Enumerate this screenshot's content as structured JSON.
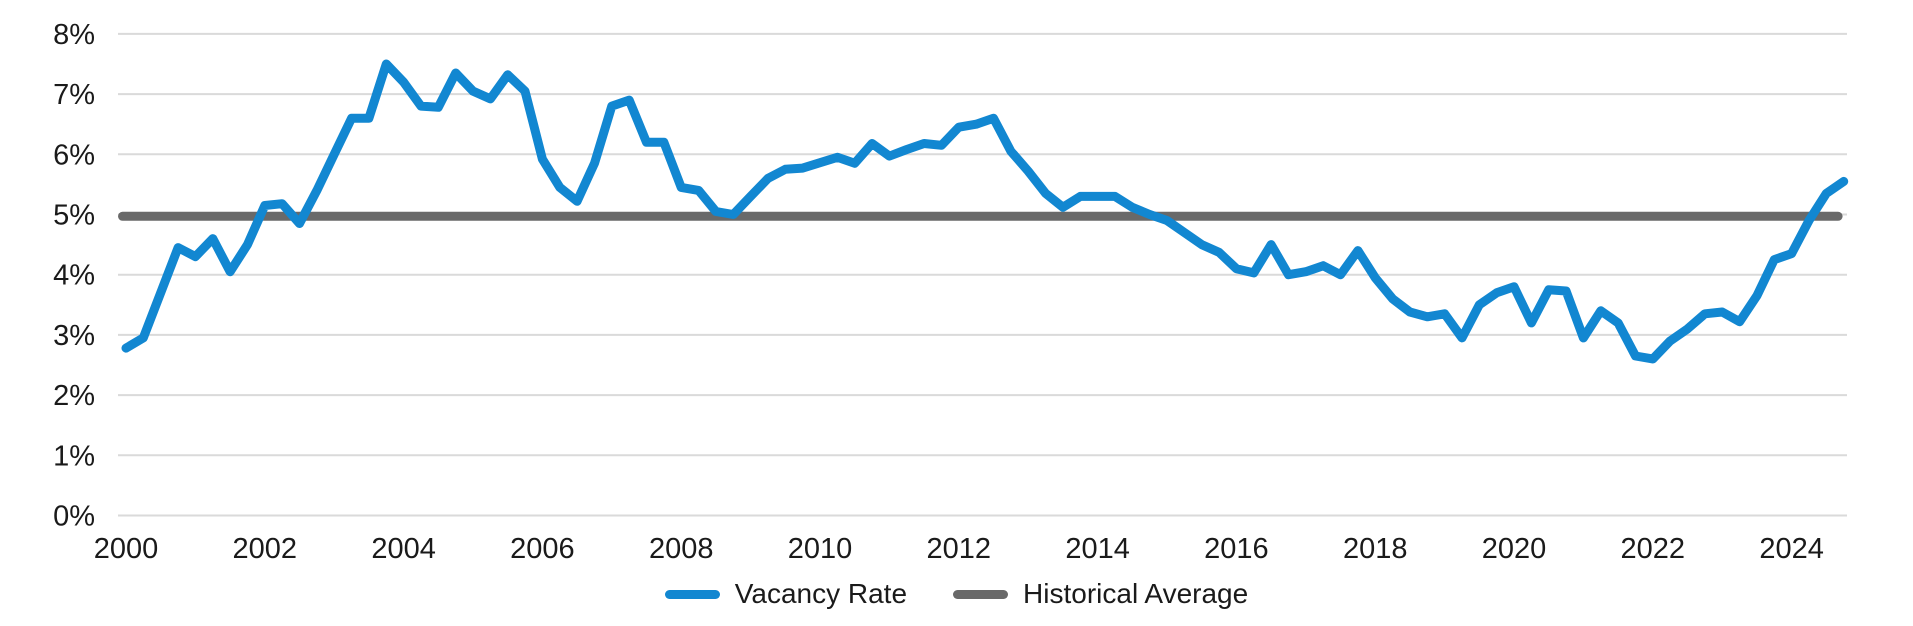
{
  "chart_data": {
    "type": "line",
    "title": "",
    "xlabel": "",
    "ylabel": "",
    "grid": "horizontal",
    "ylim": [
      0,
      8
    ],
    "y_ticks": [
      0,
      1,
      2,
      3,
      4,
      5,
      6,
      7,
      8
    ],
    "y_tick_labels": [
      "0%",
      "1%",
      "2%",
      "3%",
      "4%",
      "5%",
      "6%",
      "7%",
      "8%"
    ],
    "x_tick_years": [
      2000,
      2002,
      2004,
      2006,
      2008,
      2010,
      2012,
      2014,
      2016,
      2018,
      2020,
      2022,
      2024
    ],
    "x_tick_labels": [
      "2000",
      "2002",
      "2004",
      "2006",
      "2008",
      "2010",
      "2012",
      "2014",
      "2016",
      "2018",
      "2020",
      "2022",
      "2024"
    ],
    "legend_position": "bottom-center",
    "series": [
      {
        "name": "Vacancy Rate",
        "color": "#1287d1",
        "x_start": 2000.0,
        "x_step": 0.25,
        "x_end": 2024.75,
        "unit": "%",
        "values": [
          2.78,
          2.95,
          3.7,
          4.45,
          4.3,
          4.6,
          4.05,
          4.5,
          5.15,
          5.18,
          4.85,
          5.4,
          6.0,
          6.6,
          6.6,
          7.5,
          7.2,
          6.8,
          6.78,
          7.35,
          7.05,
          6.92,
          7.32,
          7.05,
          5.92,
          5.45,
          5.22,
          5.85,
          6.8,
          6.9,
          6.2,
          6.2,
          5.45,
          5.4,
          5.05,
          5.0,
          5.3,
          5.6,
          5.75,
          5.77,
          5.86,
          5.95,
          5.85,
          6.18,
          5.97,
          6.08,
          6.18,
          6.15,
          6.45,
          6.5,
          6.6,
          6.05,
          5.72,
          5.35,
          5.12,
          5.3,
          5.3,
          5.3,
          5.12,
          5.0,
          4.9,
          4.7,
          4.5,
          4.37,
          4.1,
          4.03,
          4.5,
          4.0,
          4.05,
          4.15,
          4.0,
          4.4,
          3.95,
          3.6,
          3.38,
          3.3,
          3.35,
          2.95,
          3.5,
          3.7,
          3.8,
          3.2,
          3.75,
          3.73,
          2.95,
          3.4,
          3.2,
          2.65,
          2.6,
          2.9,
          3.1,
          3.35,
          3.38,
          3.22,
          3.65,
          4.25,
          4.35,
          4.9,
          5.35,
          5.55
        ]
      },
      {
        "name": "Historical Average",
        "color": "#696969",
        "style": "constant",
        "value": 4.97,
        "x_start": 1999.95,
        "x_end": 2024.67,
        "unit": "%"
      }
    ]
  },
  "legend": {
    "items": [
      {
        "label": "Vacancy Rate",
        "color": "#1287d1"
      },
      {
        "label": "Historical Average",
        "color": "#696969"
      }
    ]
  },
  "colors": {
    "background": "#ffffff",
    "gridline": "#dadada",
    "tick_label": "#1a1a1a",
    "vacancy_rate_line": "#1287d1",
    "historical_average_line": "#696969"
  }
}
